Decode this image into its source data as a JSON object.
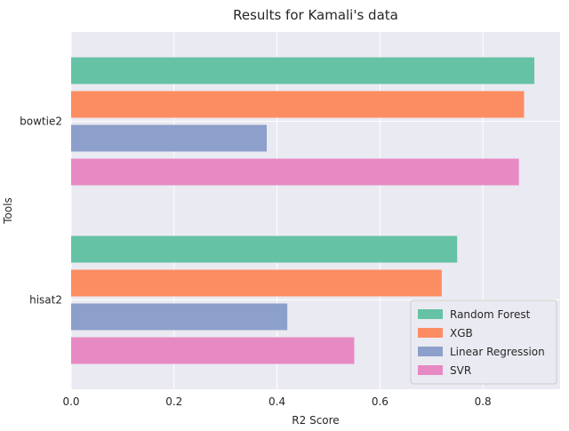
{
  "chart_data": {
    "type": "bar",
    "orientation": "horizontal",
    "title": "Results for Kamali's data",
    "xlabel": "R2 Score",
    "ylabel": "Tools",
    "xlim": [
      0,
      0.95
    ],
    "xticks": [
      "0.0",
      "0.2",
      "0.4",
      "0.6",
      "0.8"
    ],
    "xtick_values": [
      0.0,
      0.2,
      0.4,
      0.6,
      0.8
    ],
    "categories": [
      "bowtie2",
      "hisat2"
    ],
    "series": [
      {
        "name": "Random Forest",
        "color": "#66c2a5",
        "values": [
          0.9,
          0.75
        ]
      },
      {
        "name": "XGB",
        "color": "#fc8d62",
        "values": [
          0.88,
          0.72
        ]
      },
      {
        "name": "Linear Regression",
        "color": "#8da0cb",
        "values": [
          0.38,
          0.42
        ]
      },
      {
        "name": "SVR",
        "color": "#e78ac3",
        "values": [
          0.87,
          0.55
        ]
      }
    ],
    "legend_position": "lower-right",
    "grid": true,
    "background": "#eaeaf2"
  }
}
